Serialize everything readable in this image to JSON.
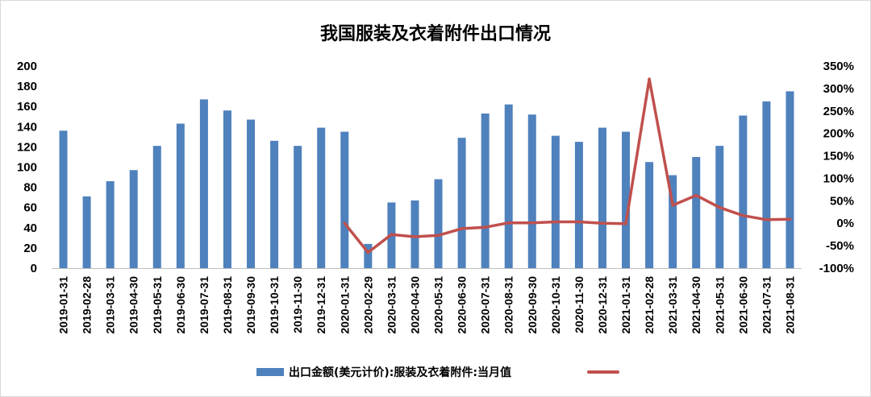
{
  "chart_data": {
    "type": "bar",
    "title": "我国服装及衣着附件出口情况",
    "categories": [
      "2019-01-31",
      "2019-02-28",
      "2019-03-31",
      "2019-04-30",
      "2019-05-31",
      "2019-06-30",
      "2019-07-31",
      "2019-08-31",
      "2019-09-30",
      "2019-10-31",
      "2019-11-30",
      "2019-12-31",
      "2020-01-31",
      "2020-02-29",
      "2020-03-31",
      "2020-04-30",
      "2020-05-31",
      "2020-06-30",
      "2020-07-31",
      "2020-08-31",
      "2020-09-30",
      "2020-10-31",
      "2020-11-30",
      "2020-12-31",
      "2021-01-31",
      "2021-02-28",
      "2021-03-31",
      "2021-04-30",
      "2021-05-31",
      "2021-06-30",
      "2021-07-31",
      "2021-08-31"
    ],
    "series": [
      {
        "name": "出口金额(美元计价):服装及衣着附件:当月值",
        "type": "bar",
        "axis": "left",
        "color": "#4f81bd",
        "values": [
          136,
          71,
          86,
          97,
          121,
          143,
          167,
          156,
          147,
          126,
          121,
          139,
          135,
          24,
          65,
          67,
          88,
          129,
          153,
          162,
          152,
          131,
          125,
          139,
          135,
          105,
          92,
          110,
          121,
          151,
          165,
          175
        ]
      },
      {
        "name": "",
        "type": "line",
        "axis": "right",
        "color": "#c0504d",
        "values": [
          null,
          null,
          null,
          null,
          null,
          null,
          null,
          null,
          null,
          null,
          null,
          null,
          0,
          -65,
          -25,
          -30,
          -27,
          -12,
          -9,
          1,
          1,
          3,
          3,
          0,
          -1,
          321,
          40,
          62,
          35,
          17,
          8,
          9
        ]
      }
    ],
    "ylim": [
      0,
      200
    ],
    "y_ticks": [
      "0",
      "20",
      "40",
      "60",
      "80",
      "100",
      "120",
      "140",
      "160",
      "180",
      "200"
    ],
    "y2lim": [
      -100,
      350
    ],
    "y2_ticks": [
      "-100%",
      "-50%",
      "0%",
      "50%",
      "100%",
      "150%",
      "200%",
      "250%",
      "300%",
      "350%"
    ],
    "legend_position": "bottom",
    "grid": false
  }
}
